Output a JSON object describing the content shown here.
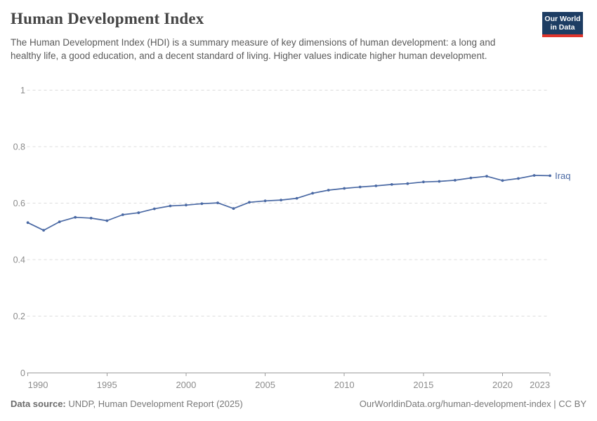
{
  "header": {
    "title": "Human Development Index",
    "subtitle": "The Human Development Index (HDI) is a summary measure of key dimensions of human development: a long and healthy life, a good education, and a decent standard of living. Higher values indicate higher human development.",
    "logo": {
      "line1": "Our World",
      "line2": "in Data",
      "bg_color": "#1d3d63",
      "accent_color": "#e0352c"
    }
  },
  "chart_data": {
    "type": "line",
    "title": "Human Development Index",
    "xlabel": "",
    "ylabel": "",
    "xlim": [
      1990,
      2023
    ],
    "ylim": [
      0,
      1
    ],
    "x_ticks": [
      1990,
      1995,
      2000,
      2005,
      2010,
      2015,
      2020,
      2023
    ],
    "y_ticks": [
      0,
      0.2,
      0.4,
      0.6,
      0.8,
      1
    ],
    "y_tick_labels": [
      "0",
      "0.2",
      "0.4",
      "0.6",
      "0.8",
      "1"
    ],
    "grid": "horizontal-dashed",
    "legend_position": "end-of-line-label",
    "series": [
      {
        "name": "Iraq",
        "color": "#4a69a4",
        "x": [
          1990,
          1991,
          1992,
          1993,
          1994,
          1995,
          1996,
          1997,
          1998,
          1999,
          2000,
          2001,
          2002,
          2003,
          2004,
          2005,
          2006,
          2007,
          2008,
          2009,
          2010,
          2011,
          2012,
          2013,
          2014,
          2015,
          2016,
          2017,
          2018,
          2019,
          2020,
          2021,
          2022,
          2023
        ],
        "values": [
          0.531,
          0.504,
          0.534,
          0.55,
          0.547,
          0.538,
          0.559,
          0.566,
          0.58,
          0.59,
          0.593,
          0.598,
          0.601,
          0.581,
          0.603,
          0.608,
          0.611,
          0.617,
          0.635,
          0.646,
          0.652,
          0.657,
          0.661,
          0.666,
          0.669,
          0.675,
          0.677,
          0.681,
          0.689,
          0.695,
          0.68,
          0.687,
          0.698,
          0.697
        ]
      }
    ],
    "axis_colors": {
      "grid": "#dcdcdc",
      "axis_line": "#9c9c9c",
      "tick_label": "#8c8c8c"
    }
  },
  "footer": {
    "source_label": "Data source:",
    "source_text": " UNDP, Human Development Report (2025)",
    "url_text": "OurWorldinData.org/human-development-index | CC BY"
  }
}
